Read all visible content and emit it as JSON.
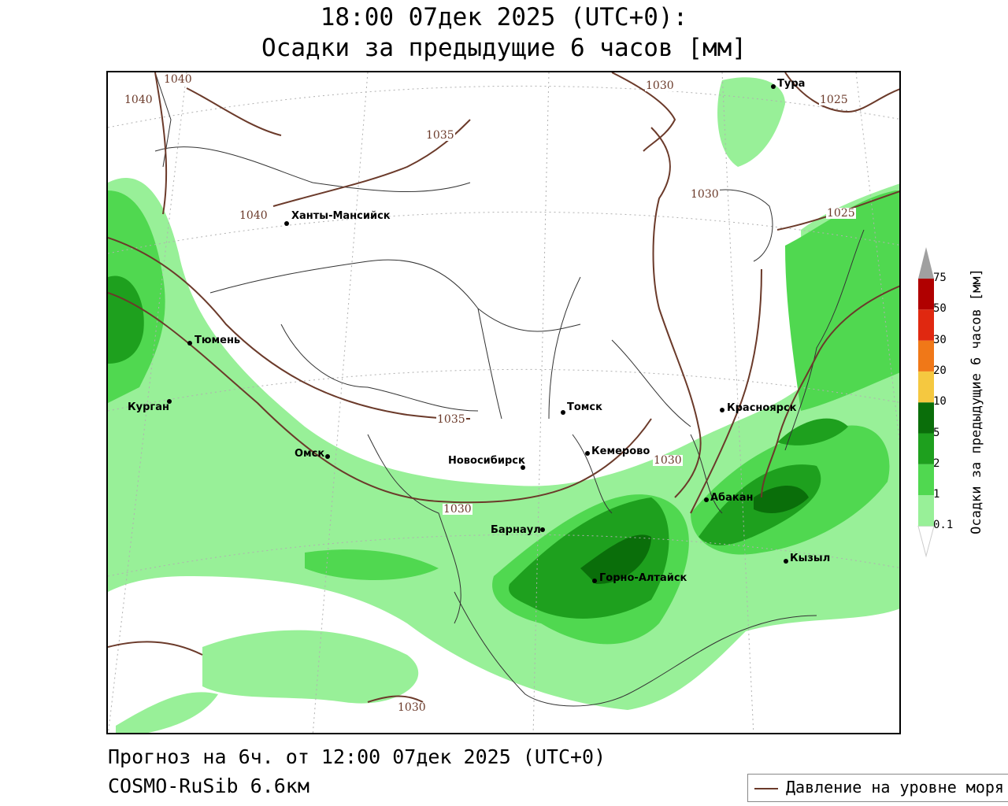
{
  "header": {
    "title_line1": "18:00 07дек 2025 (UTC+0):",
    "title_line2": "Осадки за предыдущие 6 часов [мм]"
  },
  "footer": {
    "forecast": "Прогноз на 6ч. от 12:00 07дек 2025 (UTC+0)",
    "model": "COSMO-RuSib 6.6км"
  },
  "legend": {
    "pressure_label": "Давление на уровне моря",
    "pressure_color": "#6b3a2a"
  },
  "colorbar": {
    "title": "Осадки за предыдущие 6 часов [мм]",
    "levels": [
      "0.1",
      "1",
      "2",
      "5",
      "10",
      "20",
      "30",
      "50",
      "75"
    ],
    "colors": [
      "#98f098",
      "#50d850",
      "#1ea01e",
      "#0a6e0a",
      "#f5c840",
      "#f07818",
      "#e02810",
      "#b00000",
      "#a0a0a0"
    ]
  },
  "map": {
    "cities": [
      {
        "name": "Тура"
      },
      {
        "name": "Ханты-Мансийск"
      },
      {
        "name": "Тюмень"
      },
      {
        "name": "Курган"
      },
      {
        "name": "Омск"
      },
      {
        "name": "Новосибирск"
      },
      {
        "name": "Томск"
      },
      {
        "name": "Кемерово"
      },
      {
        "name": "Красноярск"
      },
      {
        "name": "Абакан"
      },
      {
        "name": "Барнаул"
      },
      {
        "name": "Горно-Алтайск"
      },
      {
        "name": "Кызыл"
      }
    ],
    "isobars": [
      "1040",
      "1040",
      "1040",
      "1035",
      "1035",
      "1030",
      "1030",
      "1030",
      "1030",
      "1030",
      "1025",
      "1025"
    ]
  }
}
